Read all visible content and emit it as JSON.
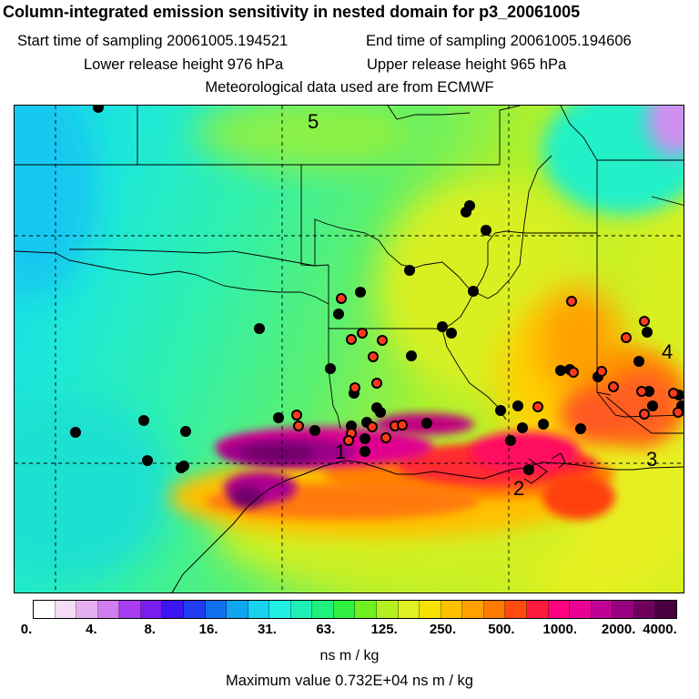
{
  "header": {
    "title": "Column-integrated emission sensitivity in nested domain for p3_20061005",
    "start_label": "Start time of sampling 20061005.194521",
    "end_label": "End time of sampling 20061005.194606",
    "lower_label": "Lower release height  976 hPa",
    "upper_label": "Upper release height  965 hPa",
    "met_label": "Meteorological data used are from ECMWF"
  },
  "map": {
    "region_labels": [
      "5",
      "4",
      "3",
      "1",
      "2"
    ]
  },
  "colorbar": {
    "ticks": [
      "0.",
      "4.",
      "8.",
      "16.",
      "31.",
      "63.",
      "125.",
      "250.",
      "500.",
      "1000.",
      "2000.",
      "4000."
    ],
    "colors": [
      "#ffffff",
      "#f4dcf7",
      "#e6b0f0",
      "#cf7df0",
      "#a83cf0",
      "#7a1cf0",
      "#3d15f0",
      "#1f3cf0",
      "#1070f0",
      "#10a5f0",
      "#18d2f0",
      "#20f0e2",
      "#20f0b8",
      "#20f07c",
      "#30f040",
      "#70f020",
      "#b5f020",
      "#e0f020",
      "#f8e000",
      "#ffc000",
      "#ffa000",
      "#ff7a00",
      "#ff4a10",
      "#ff1a40",
      "#ff0080",
      "#e80095",
      "#c00095",
      "#980080",
      "#70005e",
      "#4a0040"
    ],
    "unit": "ns m / kg"
  },
  "footer": {
    "max_label": "Maximum value  0.732E+04 ns m / kg"
  }
}
